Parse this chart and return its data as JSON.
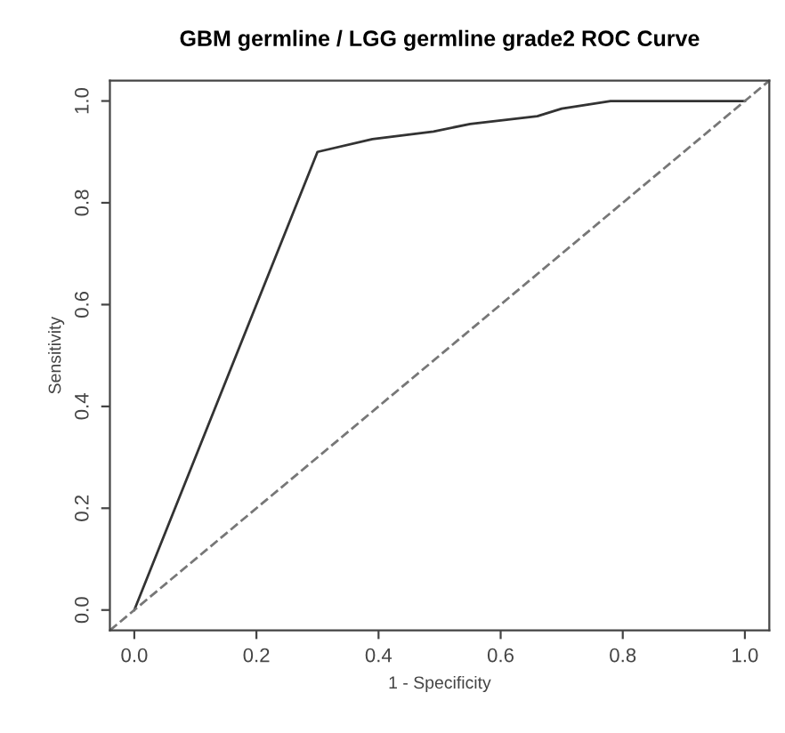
{
  "chart_data": {
    "type": "line",
    "title": "GBM germline / LGG germline grade2 ROC Curve",
    "xlabel": "1 - Specificity",
    "ylabel": "Sensitivity",
    "series": [
      {
        "color": "#333333",
        "line_style": "solid",
        "x": [
          0,
          0.3,
          0.39,
          0.49,
          0.55,
          0.66,
          0.7,
          0.78,
          1.0
        ],
        "values": [
          0,
          0.9,
          0.925,
          0.94,
          0.955,
          0.97,
          0.985,
          1.0,
          1.0
        ]
      },
      {
        "color": "#777777",
        "line_style": "dashed",
        "x": [
          -0.04,
          1.04
        ],
        "values": [
          -0.04,
          1.04
        ]
      }
    ],
    "xlim": [
      -0.04,
      1.04
    ],
    "ylim": [
      -0.04,
      1.04
    ],
    "xticks": [
      {
        "value": 0,
        "label": "0.0"
      },
      0.2,
      0.4,
      0.6,
      0.8,
      {
        "value": 1,
        "label": "1.0"
      }
    ],
    "yticks": [
      {
        "value": 0,
        "label": "0.0"
      },
      0.2,
      0.4,
      0.6,
      0.8,
      {
        "value": 1,
        "label": "1.0"
      }
    ],
    "grid": false,
    "legend": false,
    "marker": "none"
  }
}
